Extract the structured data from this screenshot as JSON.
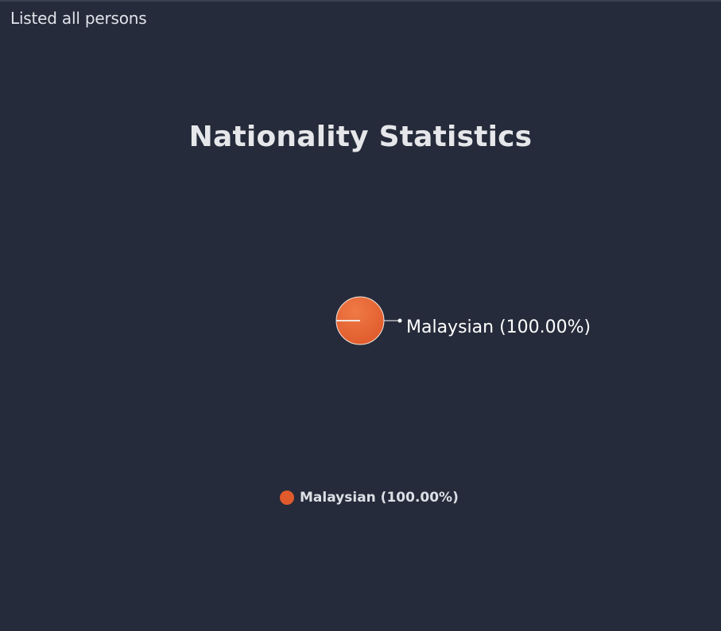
{
  "header": {
    "title": "Listed all persons"
  },
  "chart_data": {
    "type": "pie",
    "title": "Nationality Statistics",
    "categories": [
      "Malaysian"
    ],
    "values": [
      100
    ],
    "data_labels": [
      "Malaysian (100.00%)"
    ],
    "legend": {
      "placement": "bottom",
      "entries": [
        "Malaysian (100.00%)"
      ]
    },
    "colors": {
      "slice": "#e05a2c",
      "slice_highlight": "#ef7a45",
      "slice_border": "#f0e6df",
      "connector": "#ffffff"
    }
  }
}
